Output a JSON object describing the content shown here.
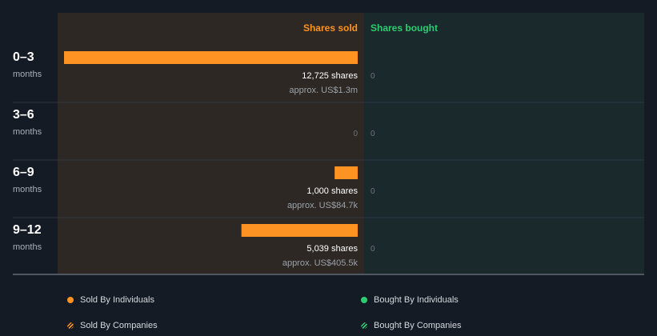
{
  "chart_data": {
    "type": "bar",
    "title": "",
    "column_headers": {
      "sold": "Shares sold",
      "bought": "Shares bought"
    },
    "colors": {
      "sold": "#fd9322",
      "bought": "#2ecc71",
      "sold_bg": "#2d2823",
      "bought_bg": "#19292c",
      "page_bg": "#151b24"
    },
    "rows": [
      {
        "period": "0–3",
        "unit": "months",
        "sold_shares": 12725,
        "sold_label": "12,725 shares",
        "sold_value": "approx. US$1.3m",
        "bought_label": "0"
      },
      {
        "period": "3–6",
        "unit": "months",
        "sold_shares": 0,
        "sold_label": "0",
        "sold_value": "",
        "bought_label": "0"
      },
      {
        "period": "6–9",
        "unit": "months",
        "sold_shares": 1000,
        "sold_label": "1,000 shares",
        "sold_value": "approx. US$84.7k",
        "bought_label": "0"
      },
      {
        "period": "9–12",
        "unit": "months",
        "sold_shares": 5039,
        "sold_label": "5,039 shares",
        "sold_value": "approx. US$405.5k",
        "bought_label": "0"
      }
    ],
    "sold_max": 12725
  },
  "legend": [
    {
      "label": "Sold By Individuals",
      "color": "#fd9322",
      "style": "dot"
    },
    {
      "label": "Bought By Individuals",
      "color": "#2ecc71",
      "style": "dot"
    },
    {
      "label": "Sold By Companies",
      "color": "#fd9322",
      "style": "hatch"
    },
    {
      "label": "Bought By Companies",
      "color": "#2ecc71",
      "style": "hatch"
    }
  ]
}
